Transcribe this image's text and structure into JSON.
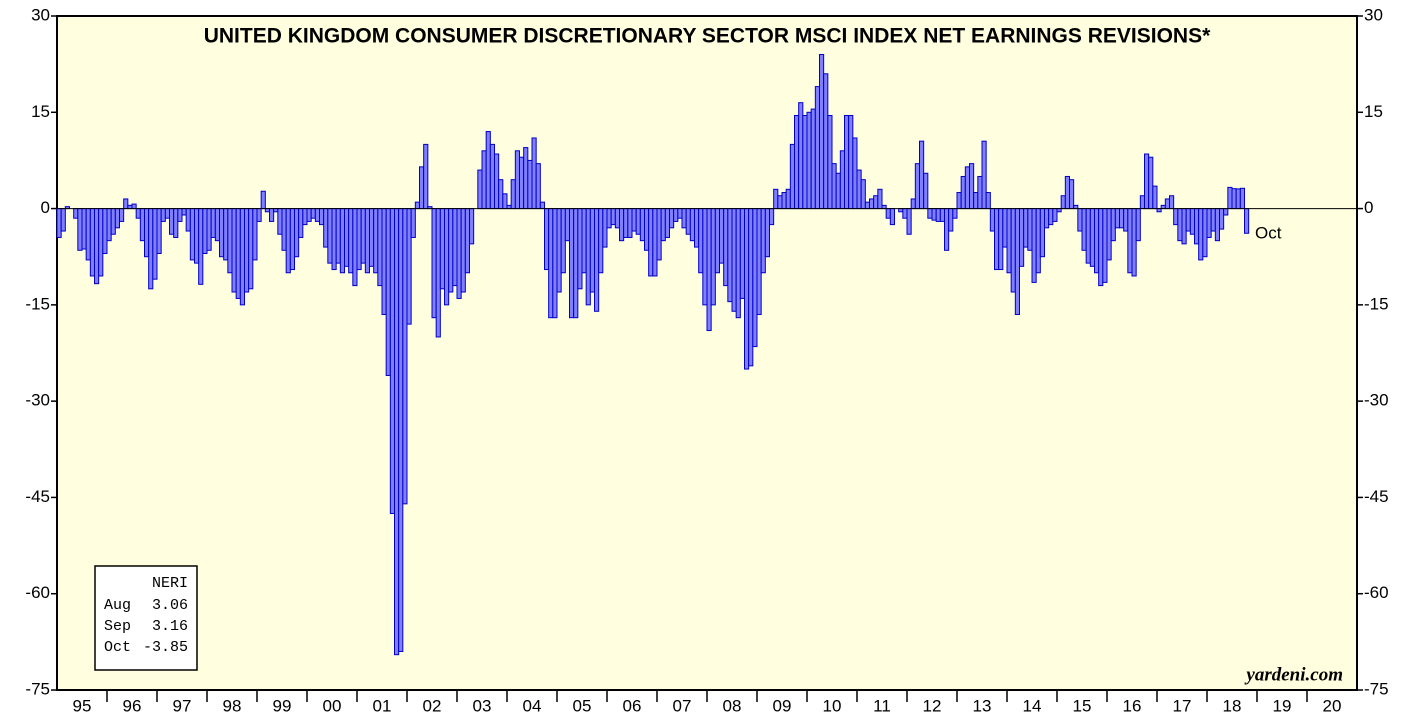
{
  "chart_data": {
    "type": "bar",
    "title": "UNITED KINGDOM CONSUMER DISCRETIONARY SECTOR MSCI INDEX NET EARNINGS REVISIONS*",
    "categories": [
      "95",
      "96",
      "97",
      "98",
      "99",
      "00",
      "01",
      "02",
      "03",
      "04",
      "05",
      "06",
      "07",
      "08",
      "09",
      "10",
      "11",
      "12",
      "13",
      "14",
      "15",
      "16",
      "17",
      "18",
      "19",
      "20"
    ],
    "values": [
      [
        -4.5,
        -3.5,
        0.3,
        0,
        -1.5,
        -6.5,
        -6.3,
        -8,
        -10.5,
        -11.7,
        -10.5,
        -7
      ],
      [
        -5,
        -4,
        -3,
        -2,
        1.5,
        0.5,
        0.7,
        -1.5,
        -5,
        -7.5,
        -12.5,
        -11
      ],
      [
        -7,
        -2,
        -1.5,
        -4,
        -4.5,
        -2,
        -1,
        -3.5,
        -8,
        -8.5,
        -11.8,
        -7
      ],
      [
        -6.5,
        -4.5,
        -5,
        -7.5,
        -8,
        -10,
        -13,
        -14,
        -15,
        -13,
        -12.5,
        -8
      ],
      [
        -2,
        2.7,
        -0.5,
        -2,
        -0.5,
        -4,
        -6.5,
        -10,
        -9.5,
        -7.5,
        -4.5,
        -2.5
      ],
      [
        -2,
        -1.5,
        -2,
        -2.5,
        -6,
        -8.5,
        -9.5,
        -8.5,
        -10,
        -9,
        -10,
        -12
      ],
      [
        -9.5,
        -8.5,
        -10,
        -9,
        -10,
        -12,
        -16.5,
        -26,
        -47.5,
        -69.5,
        -69,
        -46
      ],
      [
        -18,
        -4.5,
        1,
        6.5,
        10,
        0.3,
        -17,
        -20,
        -12.5,
        -15,
        -13,
        -12
      ],
      [
        -14,
        -13,
        -10,
        -5.5,
        0,
        6,
        9,
        12,
        10,
        8.5,
        4.5,
        2.3
      ],
      [
        0.5,
        4.5,
        9,
        8,
        9.5,
        7.5,
        11,
        7,
        1,
        -9.5,
        -17,
        -17
      ],
      [
        -13,
        -10,
        -5,
        -17,
        -17,
        -12.5,
        -10,
        -15,
        -13,
        -16,
        -10,
        -6
      ],
      [
        -3,
        -2.5,
        -3,
        -5,
        -4.5,
        -4.5,
        -3.5,
        -4,
        -5,
        -6.5,
        -10.5,
        -10.5
      ],
      [
        -8,
        -5,
        -4.5,
        -3,
        -2,
        -1.5,
        -3,
        -4,
        -5,
        -6,
        -10,
        -15
      ],
      [
        -19,
        -15,
        -10,
        -8.5,
        -12,
        -14.5,
        -16,
        -17,
        -14,
        -25,
        -24.5,
        -21.5
      ],
      [
        -16.5,
        -10,
        -7.5,
        -2.5,
        3,
        2,
        2.5,
        3,
        10,
        14.5,
        16.5,
        14.5
      ],
      [
        15,
        15.5,
        19,
        24,
        21,
        14.5,
        7,
        5.5,
        9,
        14.5,
        14.5,
        11
      ],
      [
        6,
        4.5,
        1,
        1.5,
        2,
        3,
        0.5,
        -1.5,
        -2.5,
        0,
        -0.5,
        -1.5
      ],
      [
        -4,
        1.5,
        7,
        10.5,
        5.5,
        -1.5,
        -1.8,
        -2,
        -2,
        -6.5,
        -3.5,
        -1.5
      ],
      [
        2.5,
        5,
        6.5,
        7,
        2.5,
        5,
        10.5,
        2.5,
        -3.5,
        -9.5,
        -9.5,
        -6
      ],
      [
        -10,
        -13,
        -16.5,
        -9,
        -6,
        -6.5,
        -11.5,
        -10,
        -7.5,
        -3,
        -2.5,
        -2
      ],
      [
        -0.5,
        2,
        5,
        4.5,
        0.5,
        -3.5,
        -6.5,
        -8.5,
        -9,
        -10,
        -12,
        -11.5
      ],
      [
        -8,
        -5,
        -3,
        -3,
        -3.5,
        -10,
        -10.5,
        -5,
        2,
        8.5,
        8,
        3.5
      ],
      [
        -0.5,
        0.5,
        1.5,
        2,
        -2.5,
        -5,
        -5.5,
        -3.5,
        -4,
        -5.5,
        -8,
        -7.5
      ],
      [
        -4.5,
        -3.5,
        -5,
        -3.2,
        -1,
        3.3,
        3.1,
        3.06,
        3.16,
        -3.85
      ],
      [],
      []
    ],
    "color": "#7f7fff",
    "edge_color": "#0000c8",
    "background": "#ffffe0",
    "ylim": [
      -75,
      30
    ],
    "yticks": [
      -75,
      -60,
      -45,
      -30,
      -15,
      0,
      15,
      30
    ],
    "annotation": "Oct",
    "legend_box": {
      "title": "NERI",
      "rows": [
        [
          "Aug",
          3.06
        ],
        [
          "Sep",
          3.16
        ],
        [
          "Oct",
          -3.85
        ]
      ]
    },
    "watermark": "yardeni.com"
  }
}
